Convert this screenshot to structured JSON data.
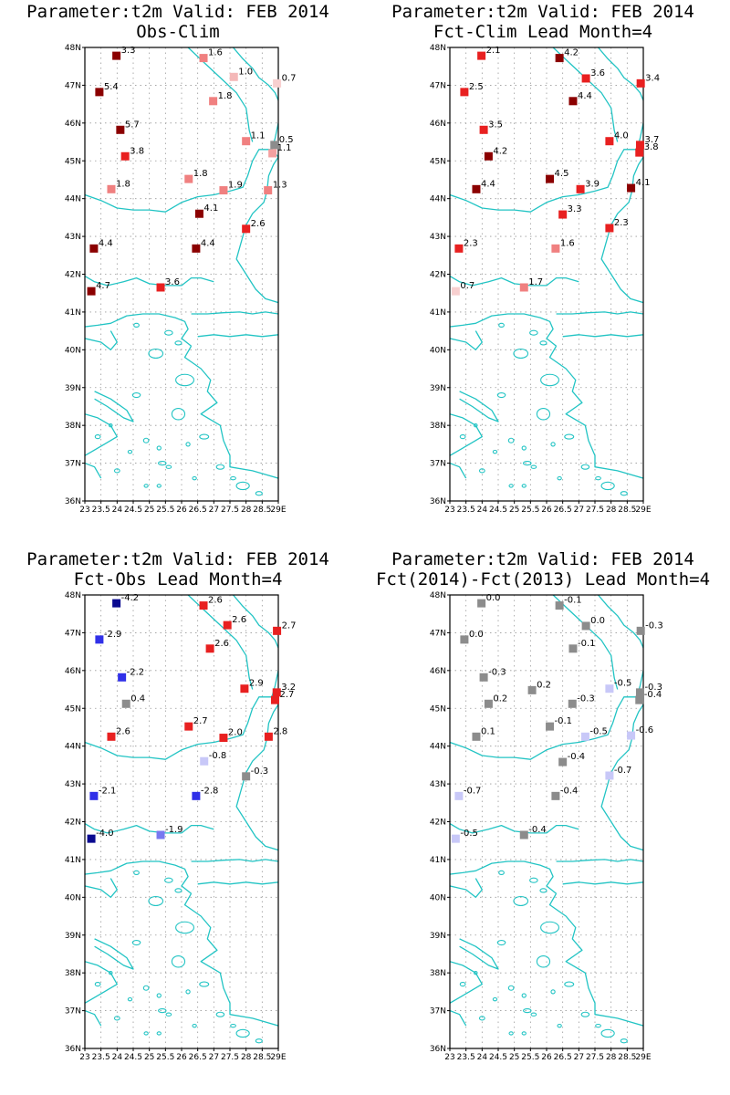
{
  "shared": {
    "lat_labels": [
      "48N",
      "47N",
      "46N",
      "45N",
      "44N",
      "43N",
      "42N",
      "41N",
      "40N",
      "39N",
      "38N",
      "37N",
      "36N"
    ],
    "lon_labels": [
      "23",
      "23.5",
      "24",
      "24.5",
      "25",
      "25.5",
      "26",
      "26.5",
      "27",
      "27.5",
      "28",
      "28.5",
      "29E"
    ],
    "coast_color": "#22c4c4",
    "grid_color": "#999999",
    "lon_range": [
      23,
      29
    ],
    "lat_range": [
      36,
      48
    ]
  },
  "panels": [
    {
      "title1": "Parameter:t2m Valid: FEB 2014",
      "title2": "Obs-Clim",
      "points": [
        {
          "lon": 23.98,
          "lat": 47.78,
          "label": "3.3",
          "color": "#8b0000"
        },
        {
          "lon": 26.68,
          "lat": 47.72,
          "label": "1.6",
          "color": "#f08080"
        },
        {
          "lon": 27.62,
          "lat": 47.22,
          "label": "1.0",
          "color": "#f4b8b8"
        },
        {
          "lon": 28.96,
          "lat": 47.05,
          "label": "0.7",
          "color": "#f8d0d0"
        },
        {
          "lon": 23.45,
          "lat": 46.82,
          "label": "5.4",
          "color": "#8b0000"
        },
        {
          "lon": 26.98,
          "lat": 46.58,
          "label": "1.8",
          "color": "#f08080"
        },
        {
          "lon": 24.1,
          "lat": 45.82,
          "label": "5.7",
          "color": "#8b0000"
        },
        {
          "lon": 28.0,
          "lat": 45.52,
          "label": "1.1",
          "color": "#f08080"
        },
        {
          "lon": 28.88,
          "lat": 45.42,
          "label": "0.5",
          "color": "#8c8c8c"
        },
        {
          "lon": 28.82,
          "lat": 45.2,
          "label": "1.1",
          "color": "#f4a0a0"
        },
        {
          "lon": 24.25,
          "lat": 45.12,
          "label": "3.8",
          "color": "#e82020"
        },
        {
          "lon": 23.82,
          "lat": 44.25,
          "label": "1.8",
          "color": "#f08080"
        },
        {
          "lon": 26.22,
          "lat": 44.52,
          "label": "1.8",
          "color": "#f08080"
        },
        {
          "lon": 27.3,
          "lat": 44.22,
          "label": "1.9",
          "color": "#f08080"
        },
        {
          "lon": 28.68,
          "lat": 44.22,
          "label": "1.3",
          "color": "#f08080"
        },
        {
          "lon": 26.55,
          "lat": 43.6,
          "label": "4.1",
          "color": "#8b0000"
        },
        {
          "lon": 28.0,
          "lat": 43.2,
          "label": "2.6",
          "color": "#e82020"
        },
        {
          "lon": 23.28,
          "lat": 42.68,
          "label": "4.4",
          "color": "#8b0000"
        },
        {
          "lon": 26.45,
          "lat": 42.68,
          "label": "4.4",
          "color": "#8b0000"
        },
        {
          "lon": 25.35,
          "lat": 41.65,
          "label": "3.6",
          "color": "#e82020"
        },
        {
          "lon": 23.2,
          "lat": 41.55,
          "label": "4.7",
          "color": "#8b0000"
        }
      ]
    },
    {
      "title1": "Parameter:t2m Valid: FEB 2014",
      "title2": "Fct-Clim Lead Month=4",
      "points": [
        {
          "lon": 23.98,
          "lat": 47.78,
          "label": "2.1",
          "color": "#e82020"
        },
        {
          "lon": 26.4,
          "lat": 47.72,
          "label": "4.2",
          "color": "#8b0000"
        },
        {
          "lon": 27.22,
          "lat": 47.18,
          "label": "3.6",
          "color": "#e82020"
        },
        {
          "lon": 28.92,
          "lat": 47.05,
          "label": "3.4",
          "color": "#e82020"
        },
        {
          "lon": 23.45,
          "lat": 46.82,
          "label": "2.5",
          "color": "#e82020"
        },
        {
          "lon": 26.82,
          "lat": 46.58,
          "label": "4.4",
          "color": "#8b0000"
        },
        {
          "lon": 24.05,
          "lat": 45.82,
          "label": "3.5",
          "color": "#e82020"
        },
        {
          "lon": 27.95,
          "lat": 45.52,
          "label": "4.0",
          "color": "#e82020"
        },
        {
          "lon": 28.9,
          "lat": 45.42,
          "label": "3.7",
          "color": "#e82020"
        },
        {
          "lon": 28.88,
          "lat": 45.22,
          "label": "3.8",
          "color": "#e82020"
        },
        {
          "lon": 24.2,
          "lat": 45.12,
          "label": "4.2",
          "color": "#8b0000"
        },
        {
          "lon": 26.1,
          "lat": 44.52,
          "label": "4.5",
          "color": "#8b0000"
        },
        {
          "lon": 23.82,
          "lat": 44.25,
          "label": "4.4",
          "color": "#8b0000"
        },
        {
          "lon": 27.05,
          "lat": 44.25,
          "label": "3.9",
          "color": "#e82020"
        },
        {
          "lon": 28.62,
          "lat": 44.28,
          "label": "4.1",
          "color": "#8b0000"
        },
        {
          "lon": 26.5,
          "lat": 43.58,
          "label": "3.3",
          "color": "#e82020"
        },
        {
          "lon": 27.95,
          "lat": 43.22,
          "label": "2.3",
          "color": "#e82020"
        },
        {
          "lon": 23.28,
          "lat": 42.68,
          "label": "2.3",
          "color": "#e82020"
        },
        {
          "lon": 26.28,
          "lat": 42.68,
          "label": "1.6",
          "color": "#f08080"
        },
        {
          "lon": 25.3,
          "lat": 41.65,
          "label": "1.7",
          "color": "#f08080"
        },
        {
          "lon": 23.18,
          "lat": 41.55,
          "label": "0.7",
          "color": "#f8d0d0"
        }
      ]
    },
    {
      "title1": "Parameter:t2m Valid: FEB 2014",
      "title2": "Fct-Obs Lead Month=4",
      "points": [
        {
          "lon": 23.98,
          "lat": 47.78,
          "label": "-4.2",
          "color": "#0a0a90"
        },
        {
          "lon": 26.68,
          "lat": 47.72,
          "label": "2.6",
          "color": "#e82020"
        },
        {
          "lon": 27.42,
          "lat": 47.2,
          "label": "2.6",
          "color": "#e82020"
        },
        {
          "lon": 28.96,
          "lat": 47.05,
          "label": "2.7",
          "color": "#e82020"
        },
        {
          "lon": 23.45,
          "lat": 46.82,
          "label": "-2.9",
          "color": "#3030e8"
        },
        {
          "lon": 26.88,
          "lat": 46.58,
          "label": "2.6",
          "color": "#e82020"
        },
        {
          "lon": 24.15,
          "lat": 45.82,
          "label": "-2.2",
          "color": "#3030e8"
        },
        {
          "lon": 27.95,
          "lat": 45.52,
          "label": "2.9",
          "color": "#e82020"
        },
        {
          "lon": 28.95,
          "lat": 45.42,
          "label": "3.2",
          "color": "#e82020"
        },
        {
          "lon": 28.9,
          "lat": 45.22,
          "label": "2.7",
          "color": "#e82020"
        },
        {
          "lon": 24.28,
          "lat": 45.12,
          "label": "0.4",
          "color": "#8c8c8c"
        },
        {
          "lon": 23.82,
          "lat": 44.25,
          "label": "2.6",
          "color": "#e82020"
        },
        {
          "lon": 26.22,
          "lat": 44.52,
          "label": "2.7",
          "color": "#e82020"
        },
        {
          "lon": 27.3,
          "lat": 44.22,
          "label": "2.0",
          "color": "#e82020"
        },
        {
          "lon": 28.7,
          "lat": 44.25,
          "label": "2.8",
          "color": "#e82020"
        },
        {
          "lon": 26.7,
          "lat": 43.6,
          "label": "-0.8",
          "color": "#c8c8f8"
        },
        {
          "lon": 28.0,
          "lat": 43.2,
          "label": "-0.3",
          "color": "#8c8c8c"
        },
        {
          "lon": 23.28,
          "lat": 42.68,
          "label": "-2.1",
          "color": "#3030e8"
        },
        {
          "lon": 26.45,
          "lat": 42.68,
          "label": "-2.8",
          "color": "#3030e8"
        },
        {
          "lon": 25.35,
          "lat": 41.65,
          "label": "-1.9",
          "color": "#7878f0"
        },
        {
          "lon": 23.2,
          "lat": 41.55,
          "label": "-4.0",
          "color": "#0a0a90"
        }
      ]
    },
    {
      "title1": "Parameter:t2m Valid: FEB 2014",
      "title2": "Fct(2014)-Fct(2013) Lead Month=4",
      "points": [
        {
          "lon": 23.98,
          "lat": 47.78,
          "label": "0.0",
          "color": "#8c8c8c"
        },
        {
          "lon": 26.4,
          "lat": 47.72,
          "label": "-0.1",
          "color": "#8c8c8c"
        },
        {
          "lon": 27.22,
          "lat": 47.18,
          "label": "0.0",
          "color": "#8c8c8c"
        },
        {
          "lon": 28.92,
          "lat": 47.05,
          "label": "-0.3",
          "color": "#8c8c8c"
        },
        {
          "lon": 23.45,
          "lat": 46.82,
          "label": "0.0",
          "color": "#8c8c8c"
        },
        {
          "lon": 26.82,
          "lat": 46.58,
          "label": "-0.1",
          "color": "#8c8c8c"
        },
        {
          "lon": 24.05,
          "lat": 45.82,
          "label": "-0.3",
          "color": "#8c8c8c"
        },
        {
          "lon": 25.55,
          "lat": 45.48,
          "label": "0.2",
          "color": "#8c8c8c"
        },
        {
          "lon": 27.95,
          "lat": 45.52,
          "label": "-0.5",
          "color": "#c8c8f8"
        },
        {
          "lon": 28.9,
          "lat": 45.42,
          "label": "-0.3",
          "color": "#8c8c8c"
        },
        {
          "lon": 28.88,
          "lat": 45.22,
          "label": "-0.4",
          "color": "#8c8c8c"
        },
        {
          "lon": 24.2,
          "lat": 45.12,
          "label": "0.2",
          "color": "#8c8c8c"
        },
        {
          "lon": 26.8,
          "lat": 45.12,
          "label": "-0.3",
          "color": "#8c8c8c"
        },
        {
          "lon": 26.1,
          "lat": 44.52,
          "label": "-0.1",
          "color": "#8c8c8c"
        },
        {
          "lon": 23.82,
          "lat": 44.25,
          "label": "0.1",
          "color": "#8c8c8c"
        },
        {
          "lon": 27.2,
          "lat": 44.25,
          "label": "-0.5",
          "color": "#c8c8f8"
        },
        {
          "lon": 28.62,
          "lat": 44.28,
          "label": "-0.6",
          "color": "#c8c8f8"
        },
        {
          "lon": 26.5,
          "lat": 43.58,
          "label": "-0.4",
          "color": "#8c8c8c"
        },
        {
          "lon": 27.95,
          "lat": 43.22,
          "label": "-0.7",
          "color": "#c8c8f8"
        },
        {
          "lon": 23.28,
          "lat": 42.68,
          "label": "-0.7",
          "color": "#c8c8f8"
        },
        {
          "lon": 26.28,
          "lat": 42.68,
          "label": "-0.4",
          "color": "#8c8c8c"
        },
        {
          "lon": 25.3,
          "lat": 41.65,
          "label": "-0.4",
          "color": "#8c8c8c"
        },
        {
          "lon": 23.18,
          "lat": 41.55,
          "label": "-0.5",
          "color": "#c8c8f8"
        }
      ]
    }
  ]
}
